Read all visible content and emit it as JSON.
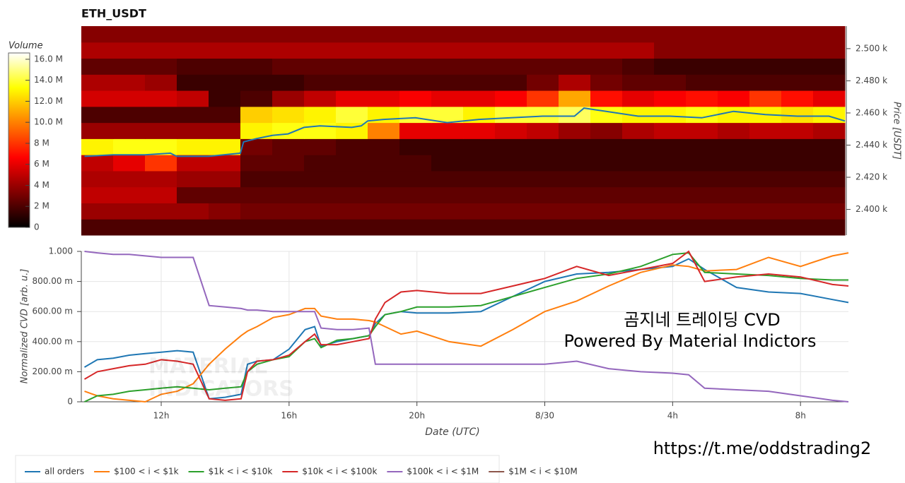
{
  "chart_data": [
    {
      "type": "heatmap",
      "title": "ETH_USDT",
      "y_label": "Price [USDT]",
      "colormap": "hot",
      "xlim": [
        9.5,
        33.5
      ],
      "ylim": [
        2384,
        2514
      ],
      "yticks": [
        {
          "value": 2400,
          "label": "2.400 k"
        },
        {
          "value": 2420,
          "label": "2.420 k"
        },
        {
          "value": 2440,
          "label": "2.440 k"
        },
        {
          "value": 2460,
          "label": "2.460 k"
        },
        {
          "value": 2480,
          "label": "2.480 k"
        },
        {
          "value": 2500,
          "label": "2.500 k"
        }
      ],
      "x_bins": [
        9.5,
        10.5,
        11.5,
        12.5,
        13.5,
        14.5,
        15.5,
        16.5,
        17.5,
        18.5,
        19.5,
        20.5,
        21.5,
        22.5,
        23.5,
        24.5,
        25.5,
        26.5,
        27.5,
        28.5,
        29.5,
        30.5,
        31.5,
        32.5,
        33.5
      ],
      "y_bins": [
        2384,
        2394,
        2404,
        2414,
        2424,
        2434,
        2444,
        2454,
        2464,
        2474,
        2484,
        2494,
        2504,
        2514
      ],
      "z": [
        [
          2,
          2,
          2,
          2,
          2,
          2,
          2,
          2,
          2,
          2,
          2,
          2,
          2,
          2,
          2,
          2,
          2,
          2,
          2,
          2,
          2,
          2,
          2,
          2
        ],
        [
          4,
          4,
          4,
          4,
          3.5,
          3,
          3,
          3,
          3,
          3,
          3,
          3,
          3,
          3,
          3,
          3,
          3,
          3,
          3,
          3,
          3,
          3,
          3,
          3
        ],
        [
          5,
          5,
          5,
          2.5,
          2.5,
          2.5,
          2.5,
          2.5,
          2.5,
          2.5,
          2.5,
          2.5,
          2.5,
          2.5,
          2.5,
          2.5,
          2.5,
          2.5,
          2.5,
          2.5,
          2.5,
          2.5,
          2.5,
          2.5
        ],
        [
          4.5,
          4.5,
          4.5,
          4,
          4,
          2,
          2,
          2,
          2,
          2,
          2,
          2,
          2,
          2,
          2,
          2,
          2,
          2,
          2,
          2,
          2,
          2,
          2,
          2
        ],
        [
          5,
          6,
          8,
          5,
          5,
          2.5,
          2.5,
          2,
          2,
          2,
          2,
          1.5,
          1.5,
          1.5,
          1.5,
          1.5,
          1.5,
          1.5,
          1.5,
          1.5,
          1.5,
          1.5,
          1.5,
          1.5
        ],
        [
          13,
          13.5,
          13.5,
          13,
          13,
          3,
          2.5,
          2.5,
          2,
          2,
          1.5,
          1.5,
          1.5,
          1.5,
          1.5,
          1.5,
          1.5,
          1.5,
          1.5,
          1.5,
          1.5,
          1.5,
          1.5,
          1.5
        ],
        [
          4,
          4,
          4,
          4,
          4,
          13,
          13.5,
          13.5,
          13,
          10,
          6,
          6,
          6,
          5.5,
          5,
          4,
          3.5,
          4.5,
          5,
          5,
          4.5,
          5,
          5,
          4.5
        ],
        [
          2,
          2,
          2,
          2,
          2,
          12,
          12.5,
          13,
          14,
          13,
          14,
          14,
          13,
          14,
          14,
          14.5,
          13.5,
          13,
          13,
          13.5,
          13,
          13,
          12.5,
          13
        ],
        [
          5.5,
          5.5,
          5.5,
          5,
          1.5,
          2,
          4,
          5,
          6,
          6,
          6.5,
          6,
          6,
          6.5,
          8,
          11,
          7,
          6,
          6.5,
          7,
          6.5,
          8,
          7,
          6
        ],
        [
          4.5,
          4.5,
          4,
          1.5,
          1.5,
          1.5,
          1.5,
          2,
          2,
          2,
          2,
          2,
          2,
          2,
          3,
          4.5,
          3,
          2.5,
          2.5,
          2,
          2,
          2,
          2,
          2
        ],
        [
          2.5,
          2.5,
          2.5,
          2,
          2,
          2,
          2.5,
          2.5,
          2.5,
          2.5,
          2.5,
          2.5,
          2.5,
          2.5,
          2.5,
          2.5,
          2.5,
          2,
          1.5,
          1.5,
          1.5,
          1.5,
          1.5,
          1.5
        ],
        [
          4.5,
          4.5,
          4.5,
          4.5,
          4.5,
          4.5,
          4.5,
          4.5,
          4.5,
          4.5,
          4.5,
          4.5,
          4.5,
          4.5,
          4.5,
          4.5,
          4.5,
          4.5,
          3.5,
          3.5,
          3.5,
          3.5,
          3.5,
          3.5
        ],
        [
          3.5,
          3.5,
          3.5,
          3.5,
          3.5,
          3.5,
          3.5,
          3.5,
          3.5,
          3.5,
          3.5,
          3.5,
          3.5,
          3.5,
          3.5,
          3.5,
          3.5,
          3.5,
          3.5,
          3.5,
          3.5,
          3.5,
          3.5,
          3.5
        ]
      ],
      "colorbar": {
        "label": "Volume",
        "lim": [
          0,
          16.6
        ],
        "ticks": [
          0,
          {
            "value": 2,
            "label": "2 M"
          },
          {
            "value": 4,
            "label": "4 M"
          },
          {
            "value": 6,
            "label": "6 M"
          },
          {
            "value": 8,
            "label": "8 M"
          },
          {
            "value": 10,
            "label": "10.0 M"
          },
          {
            "value": 12,
            "label": "12.0 M"
          },
          {
            "value": 14,
            "label": "14.0 M"
          },
          {
            "value": 16,
            "label": "16.0 M"
          }
        ]
      },
      "line": {
        "color": "#1f77b4",
        "x": [
          9.6,
          10.5,
          11.5,
          12.3,
          12.5,
          13.5,
          14.5,
          14.6,
          15,
          15.5,
          16,
          16.5,
          17,
          18,
          18.3,
          18.5,
          19,
          20,
          21,
          22,
          23,
          24,
          25,
          25.3,
          26,
          27,
          28,
          29,
          30,
          31,
          32,
          33,
          33.5
        ],
        "values": [
          2433,
          2434,
          2434,
          2435,
          2433,
          2433,
          2435,
          2442,
          2444,
          2446,
          2447,
          2451,
          2452,
          2451,
          2452,
          2455,
          2456,
          2457,
          2454,
          2456,
          2457,
          2458,
          2458,
          2463,
          2461,
          2458,
          2458,
          2457,
          2461,
          2459,
          2458,
          2458,
          2455
        ]
      }
    },
    {
      "type": "line",
      "x_label": "Date (UTC)",
      "y_label": "Normalized CVD [arb. u.]",
      "grid": true,
      "legend": "bottom-left",
      "xlim": [
        9.5,
        33.5
      ],
      "ylim": [
        0,
        1
      ],
      "xticks": [
        {
          "value": 12,
          "label": "12h"
        },
        {
          "value": 16,
          "label": "16h"
        },
        {
          "value": 20,
          "label": "20h"
        },
        {
          "value": 24,
          "label": "8/30"
        },
        {
          "value": 28,
          "label": "4h"
        },
        {
          "value": 32,
          "label": "8h"
        }
      ],
      "yticks": [
        0,
        {
          "value": 0.2,
          "label": "200.00 m"
        },
        {
          "value": 0.4,
          "label": "400.00 m"
        },
        {
          "value": 0.6,
          "label": "600.00 m"
        },
        {
          "value": 0.8,
          "label": "800.00 m"
        },
        {
          "value": 1,
          "label": "1.000"
        }
      ],
      "x": [
        9.6,
        10,
        10.5,
        11,
        11.5,
        12,
        12.5,
        13,
        13.5,
        14,
        14.5,
        14.7,
        15,
        15.5,
        16,
        16.5,
        16.8,
        17,
        17.5,
        18,
        18.5,
        18.7,
        19,
        19.5,
        20,
        21,
        22,
        23,
        24,
        25,
        26,
        27,
        28,
        28.5,
        29,
        30,
        31,
        32,
        33,
        33.5
      ],
      "series": [
        {
          "name": "all orders",
          "color": "#1f77b4",
          "values": [
            0.23,
            0.28,
            0.29,
            0.31,
            0.32,
            0.33,
            0.34,
            0.33,
            0.02,
            0.03,
            0.05,
            0.25,
            0.27,
            0.28,
            0.35,
            0.48,
            0.5,
            0.37,
            0.4,
            0.42,
            0.44,
            0.52,
            0.58,
            0.6,
            0.59,
            0.59,
            0.6,
            0.7,
            0.8,
            0.85,
            0.86,
            0.88,
            0.9,
            0.95,
            0.88,
            0.76,
            0.73,
            0.72,
            0.68,
            0.66
          ]
        },
        {
          "name": "$100 < i < $1k",
          "color": "#ff7f0e",
          "values": [
            0.07,
            0.04,
            0.02,
            0.01,
            0,
            0.05,
            0.07,
            0.12,
            0.25,
            0.35,
            0.44,
            0.47,
            0.5,
            0.56,
            0.58,
            0.62,
            0.62,
            0.57,
            0.55,
            0.55,
            0.54,
            0.53,
            0.5,
            0.45,
            0.47,
            0.4,
            0.37,
            0.48,
            0.6,
            0.67,
            0.77,
            0.86,
            0.91,
            0.9,
            0.87,
            0.88,
            0.96,
            0.9,
            0.97,
            0.99
          ]
        },
        {
          "name": "$1k < i < $10k",
          "color": "#2ca02c",
          "values": [
            0,
            0.04,
            0.05,
            0.07,
            0.08,
            0.09,
            0.1,
            0.09,
            0.08,
            0.09,
            0.1,
            0.2,
            0.25,
            0.28,
            0.3,
            0.4,
            0.42,
            0.36,
            0.41,
            0.42,
            0.44,
            0.5,
            0.58,
            0.6,
            0.63,
            0.63,
            0.64,
            0.7,
            0.76,
            0.82,
            0.85,
            0.9,
            0.98,
            0.99,
            0.86,
            0.85,
            0.84,
            0.82,
            0.81,
            0.81
          ]
        },
        {
          "name": "$10k < i < $100k",
          "color": "#d62728",
          "values": [
            0.15,
            0.2,
            0.22,
            0.24,
            0.25,
            0.28,
            0.27,
            0.25,
            0.02,
            0.01,
            0.02,
            0.2,
            0.27,
            0.28,
            0.31,
            0.4,
            0.45,
            0.38,
            0.38,
            0.4,
            0.42,
            0.55,
            0.66,
            0.73,
            0.74,
            0.72,
            0.72,
            0.77,
            0.82,
            0.9,
            0.84,
            0.88,
            0.92,
            1,
            0.8,
            0.83,
            0.85,
            0.83,
            0.78,
            0.77
          ]
        },
        {
          "name": "$100k < i < $1M",
          "color": "#9467bd",
          "values": [
            1,
            0.99,
            0.98,
            0.98,
            0.97,
            0.96,
            0.96,
            0.96,
            0.64,
            0.63,
            0.62,
            0.61,
            0.61,
            0.6,
            0.6,
            0.6,
            0.6,
            0.49,
            0.48,
            0.48,
            0.49,
            0.25,
            0.25,
            0.25,
            0.25,
            0.25,
            0.25,
            0.25,
            0.25,
            0.27,
            0.22,
            0.2,
            0.19,
            0.18,
            0.09,
            0.08,
            0.07,
            0.04,
            0.01,
            0
          ]
        },
        {
          "name": "$1M < i < $10M",
          "color": "#8c564b",
          "values": [
            null,
            null,
            null,
            null,
            null,
            null,
            null,
            null,
            null,
            null,
            null,
            null,
            null,
            null,
            null,
            null,
            null,
            null,
            null,
            null,
            null,
            null,
            null,
            null,
            null,
            null,
            null,
            null,
            null,
            null,
            null,
            null,
            null,
            null,
            null,
            null,
            null,
            null,
            null,
            null
          ]
        }
      ],
      "annotations": [
        "곰지네 트레이딩 CVD",
        "Powered By Material Indictors",
        "https://t.me/oddstrading2"
      ],
      "watermark": [
        "MATERIAL",
        "INDICATORS"
      ]
    }
  ]
}
